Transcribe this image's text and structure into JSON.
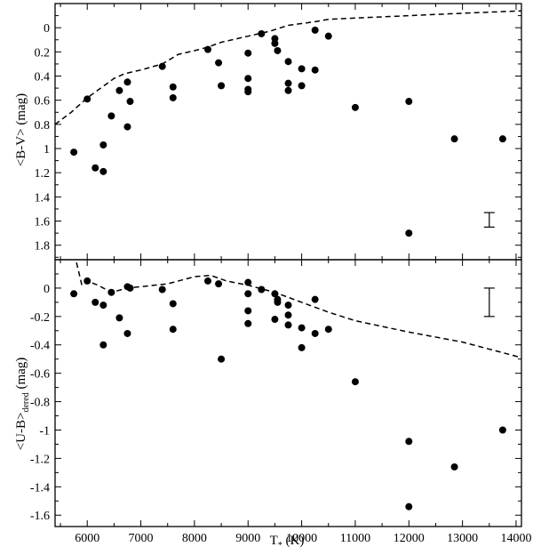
{
  "chart_data": [
    {
      "type": "scatter",
      "panel": "top",
      "ylabel": "<B-V> (mag)",
      "xlim": [
        5400,
        14100
      ],
      "ylim": [
        1.92,
        -0.2
      ],
      "y_inverted": true,
      "xticks": [
        6000,
        7000,
        8000,
        9000,
        10000,
        11000,
        12000,
        13000,
        14000
      ],
      "yticks": [
        0,
        0.2,
        0.4,
        0.6,
        0.8,
        1,
        1.2,
        1.4,
        1.6,
        1.8
      ],
      "ytick_labels": [
        "0",
        "0.2",
        "0.4",
        "0.6",
        "0.8",
        "1",
        "1.2",
        "1.4",
        "1.6",
        "1.8"
      ],
      "points": [
        {
          "x": 5750,
          "y": 1.03
        },
        {
          "x": 6000,
          "y": 0.59
        },
        {
          "x": 6150,
          "y": 1.16
        },
        {
          "x": 6300,
          "y": 0.97
        },
        {
          "x": 6300,
          "y": 1.19
        },
        {
          "x": 6450,
          "y": 0.73
        },
        {
          "x": 6600,
          "y": 0.52
        },
        {
          "x": 6750,
          "y": 0.45
        },
        {
          "x": 6800,
          "y": 0.61
        },
        {
          "x": 6750,
          "y": 0.82
        },
        {
          "x": 7400,
          "y": 0.32
        },
        {
          "x": 7600,
          "y": 0.49
        },
        {
          "x": 7600,
          "y": 0.58
        },
        {
          "x": 8250,
          "y": 0.18
        },
        {
          "x": 8450,
          "y": 0.29
        },
        {
          "x": 8500,
          "y": 0.48
        },
        {
          "x": 9000,
          "y": 0.21
        },
        {
          "x": 9000,
          "y": 0.42
        },
        {
          "x": 9000,
          "y": 0.51
        },
        {
          "x": 9000,
          "y": 0.53
        },
        {
          "x": 9250,
          "y": 0.05
        },
        {
          "x": 9500,
          "y": 0.09
        },
        {
          "x": 9500,
          "y": 0.13
        },
        {
          "x": 9550,
          "y": 0.19
        },
        {
          "x": 9750,
          "y": 0.28
        },
        {
          "x": 9750,
          "y": 0.46
        },
        {
          "x": 9750,
          "y": 0.52
        },
        {
          "x": 10000,
          "y": 0.34
        },
        {
          "x": 10000,
          "y": 0.48
        },
        {
          "x": 10250,
          "y": 0.02
        },
        {
          "x": 10250,
          "y": 0.35
        },
        {
          "x": 10500,
          "y": 0.07
        },
        {
          "x": 11000,
          "y": 0.66
        },
        {
          "x": 12000,
          "y": 0.61
        },
        {
          "x": 12000,
          "y": 1.7
        },
        {
          "x": 12850,
          "y": 0.92
        },
        {
          "x": 13750,
          "y": 0.92
        }
      ],
      "curve": [
        {
          "x": 5400,
          "y": 0.8
        },
        {
          "x": 5700,
          "y": 0.7
        },
        {
          "x": 6000,
          "y": 0.58
        },
        {
          "x": 6250,
          "y": 0.5
        },
        {
          "x": 6500,
          "y": 0.42
        },
        {
          "x": 6700,
          "y": 0.38
        },
        {
          "x": 7000,
          "y": 0.35
        },
        {
          "x": 7400,
          "y": 0.3
        },
        {
          "x": 7700,
          "y": 0.22
        },
        {
          "x": 8000,
          "y": 0.19
        },
        {
          "x": 8250,
          "y": 0.16
        },
        {
          "x": 8500,
          "y": 0.12
        },
        {
          "x": 9000,
          "y": 0.07
        },
        {
          "x": 9400,
          "y": 0.03
        },
        {
          "x": 9750,
          "y": -0.02
        },
        {
          "x": 10250,
          "y": -0.05
        },
        {
          "x": 10500,
          "y": -0.07
        },
        {
          "x": 11000,
          "y": -0.08
        },
        {
          "x": 12000,
          "y": -0.1
        },
        {
          "x": 13000,
          "y": -0.12
        },
        {
          "x": 14100,
          "y": -0.14
        }
      ],
      "error_bar": {
        "x": 13500,
        "y_low": 1.53,
        "y_high": 1.65
      }
    },
    {
      "type": "scatter",
      "panel": "bottom",
      "ylabel_main": "<U-B>",
      "ylabel_sub": "dered",
      "ylabel_unit": " (mag)",
      "xlabel_main": "T",
      "xlabel_sub": "*",
      "xlabel_unit": " (K)",
      "xlim": [
        5400,
        14100
      ],
      "ylim": [
        -1.68,
        0.2
      ],
      "xticks": [
        6000,
        7000,
        8000,
        9000,
        10000,
        11000,
        12000,
        13000,
        14000
      ],
      "xtick_labels": [
        "6000",
        "7000",
        "8000",
        "9000",
        "10000",
        "11000",
        "12000",
        "13000",
        "14000"
      ],
      "yticks": [
        0,
        -0.2,
        -0.4,
        -0.6,
        -0.8,
        -1,
        -1.2,
        -1.4,
        -1.6
      ],
      "ytick_labels": [
        "0",
        "-0.2",
        "-0.4",
        "-0.6",
        "-0.8",
        "-1",
        "-1.2",
        "-1.4",
        "-1.6"
      ],
      "points": [
        {
          "x": 5750,
          "y": -0.04
        },
        {
          "x": 6000,
          "y": 0.05
        },
        {
          "x": 6150,
          "y": -0.1
        },
        {
          "x": 6300,
          "y": -0.12
        },
        {
          "x": 6300,
          "y": -0.4
        },
        {
          "x": 6450,
          "y": -0.03
        },
        {
          "x": 6600,
          "y": -0.21
        },
        {
          "x": 6750,
          "y": 0.01
        },
        {
          "x": 6800,
          "y": 0.0
        },
        {
          "x": 6750,
          "y": -0.32
        },
        {
          "x": 7400,
          "y": -0.01
        },
        {
          "x": 7600,
          "y": -0.11
        },
        {
          "x": 7600,
          "y": -0.29
        },
        {
          "x": 8250,
          "y": 0.05
        },
        {
          "x": 8450,
          "y": 0.03
        },
        {
          "x": 8500,
          "y": -0.5
        },
        {
          "x": 9000,
          "y": 0.04
        },
        {
          "x": 9000,
          "y": -0.04
        },
        {
          "x": 9000,
          "y": -0.16
        },
        {
          "x": 9000,
          "y": -0.25
        },
        {
          "x": 9250,
          "y": -0.01
        },
        {
          "x": 9500,
          "y": -0.04
        },
        {
          "x": 9550,
          "y": -0.08
        },
        {
          "x": 9550,
          "y": -0.1
        },
        {
          "x": 9500,
          "y": -0.22
        },
        {
          "x": 9750,
          "y": -0.12
        },
        {
          "x": 9750,
          "y": -0.19
        },
        {
          "x": 9750,
          "y": -0.26
        },
        {
          "x": 10000,
          "y": -0.28
        },
        {
          "x": 10000,
          "y": -0.42
        },
        {
          "x": 10250,
          "y": -0.08
        },
        {
          "x": 10250,
          "y": -0.32
        },
        {
          "x": 10500,
          "y": -0.29
        },
        {
          "x": 11000,
          "y": -0.66
        },
        {
          "x": 12000,
          "y": -1.08
        },
        {
          "x": 12000,
          "y": -1.54
        },
        {
          "x": 12850,
          "y": -1.26
        },
        {
          "x": 13750,
          "y": -1.0
        }
      ],
      "curve": [
        {
          "x": 5800,
          "y": 0.18
        },
        {
          "x": 5900,
          "y": 0.02
        },
        {
          "x": 6000,
          "y": 0.05
        },
        {
          "x": 6200,
          "y": 0.02
        },
        {
          "x": 6450,
          "y": -0.03
        },
        {
          "x": 6750,
          "y": 0.0
        },
        {
          "x": 7000,
          "y": 0.01
        },
        {
          "x": 7500,
          "y": 0.03
        },
        {
          "x": 8000,
          "y": 0.08
        },
        {
          "x": 8300,
          "y": 0.09
        },
        {
          "x": 8600,
          "y": 0.05
        },
        {
          "x": 9000,
          "y": 0.02
        },
        {
          "x": 9500,
          "y": -0.03
        },
        {
          "x": 10000,
          "y": -0.1
        },
        {
          "x": 10500,
          "y": -0.17
        },
        {
          "x": 11000,
          "y": -0.23
        },
        {
          "x": 11500,
          "y": -0.27
        },
        {
          "x": 12000,
          "y": -0.31
        },
        {
          "x": 13000,
          "y": -0.38
        },
        {
          "x": 14100,
          "y": -0.49
        }
      ],
      "error_bar": {
        "x": 13500,
        "y_low": -0.2,
        "y_high": 0.0
      }
    }
  ]
}
